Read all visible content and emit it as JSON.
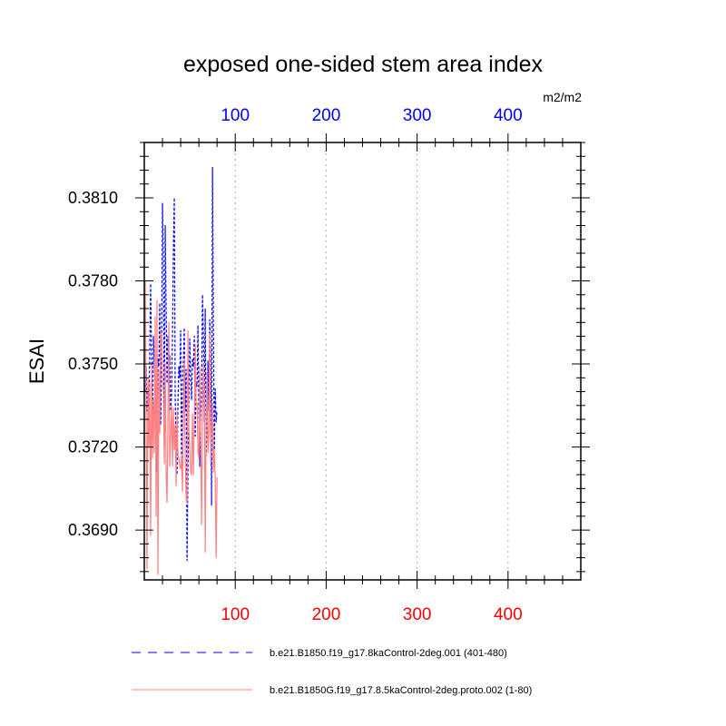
{
  "chart_data": {
    "type": "line",
    "title": "exposed one-sided stem area index",
    "units": "m2/m2",
    "ylabel": "ESAI",
    "xlabel": "",
    "xlim": [
      0,
      480
    ],
    "ylim": [
      0.3672,
      0.383
    ],
    "yticks": [
      0.369,
      0.372,
      0.375,
      0.378,
      0.381
    ],
    "ytick_labels": [
      "0.3690",
      "0.3720",
      "0.3750",
      "0.3780",
      "0.3810"
    ],
    "xticks": [
      100,
      200,
      300,
      400
    ],
    "xtick_labels_top": [
      "100",
      "200",
      "300",
      "400"
    ],
    "xtick_labels_bottom": [
      "100",
      "200",
      "300",
      "400"
    ],
    "x_grid": true,
    "series": [
      {
        "name": "b.e21.B1850.f19_g17.8kaControl-2deg.001 (401-480)",
        "color": "#0000ff",
        "style": "dashed",
        "axis": "top",
        "x": [
          1,
          2,
          3,
          4,
          5,
          6,
          7,
          8,
          9,
          10,
          11,
          12,
          13,
          14,
          15,
          16,
          17,
          18,
          19,
          20,
          21,
          22,
          23,
          24,
          25,
          26,
          27,
          28,
          29,
          30,
          31,
          32,
          33,
          34,
          35,
          36,
          37,
          38,
          39,
          40,
          41,
          42,
          43,
          44,
          45,
          46,
          47,
          48,
          49,
          50,
          51,
          52,
          53,
          54,
          55,
          56,
          57,
          58,
          59,
          60,
          61,
          62,
          63,
          64,
          65,
          66,
          67,
          68,
          69,
          70,
          71,
          72,
          73,
          74,
          75,
          76,
          77,
          78,
          79,
          80
        ],
        "values": [
          0.374,
          0.3749,
          0.3733,
          0.3742,
          0.3731,
          0.3756,
          0.3779,
          0.375,
          0.3725,
          0.376,
          0.3752,
          0.374,
          0.373,
          0.3711,
          0.3752,
          0.3749,
          0.3772,
          0.3728,
          0.3755,
          0.3808,
          0.379,
          0.372,
          0.38,
          0.3771,
          0.3743,
          0.376,
          0.3748,
          0.3753,
          0.3733,
          0.3739,
          0.376,
          0.3791,
          0.381,
          0.3737,
          0.3722,
          0.371,
          0.3736,
          0.3749,
          0.3745,
          0.3762,
          0.3713,
          0.3743,
          0.3752,
          0.3763,
          0.3733,
          0.3748,
          0.3679,
          0.3711,
          0.3733,
          0.3759,
          0.3746,
          0.3737,
          0.3752,
          0.3749,
          0.376,
          0.3724,
          0.3743,
          0.3742,
          0.3764,
          0.3732,
          0.3713,
          0.373,
          0.374,
          0.3775,
          0.376,
          0.3729,
          0.377,
          0.3717,
          0.3728,
          0.3751,
          0.3733,
          0.3766,
          0.3752,
          0.3699,
          0.3821,
          0.3765,
          0.3719,
          0.3741,
          0.3729,
          0.3733
        ]
      },
      {
        "name": "b.e21.B1850G.f19_g17.8.5kaControl-2deg.proto.002 (1-80)",
        "color": "#ff8080",
        "style": "solid",
        "axis": "bottom",
        "x": [
          1,
          2,
          3,
          4,
          5,
          6,
          7,
          8,
          9,
          10,
          11,
          12,
          13,
          14,
          15,
          16,
          17,
          18,
          19,
          20,
          21,
          22,
          23,
          24,
          25,
          26,
          27,
          28,
          29,
          30,
          31,
          32,
          33,
          34,
          35,
          36,
          37,
          38,
          39,
          40,
          41,
          42,
          43,
          44,
          45,
          46,
          47,
          48,
          49,
          50,
          51,
          52,
          53,
          54,
          55,
          56,
          57,
          58,
          59,
          60,
          61,
          62,
          63,
          64,
          65,
          66,
          67,
          68,
          69,
          70,
          71,
          72,
          73,
          74,
          75,
          76,
          77,
          78,
          79,
          80
        ],
        "values": [
          0.378,
          0.3736,
          0.3676,
          0.3745,
          0.372,
          0.3743,
          0.3688,
          0.375,
          0.3716,
          0.3737,
          0.3718,
          0.3767,
          0.3695,
          0.3773,
          0.3674,
          0.3748,
          0.3725,
          0.3762,
          0.376,
          0.3745,
          0.374,
          0.3714,
          0.375,
          0.371,
          0.37,
          0.373,
          0.3765,
          0.3713,
          0.3724,
          0.3735,
          0.3713,
          0.3734,
          0.3719,
          0.3728,
          0.3706,
          0.3733,
          0.3717,
          0.3716,
          0.3713,
          0.3712,
          0.3717,
          0.3704,
          0.373,
          0.3752,
          0.3716,
          0.3701,
          0.37,
          0.3762,
          0.3726,
          0.372,
          0.3711,
          0.371,
          0.3732,
          0.371,
          0.373,
          0.3757,
          0.3735,
          0.3736,
          0.3718,
          0.3716,
          0.3749,
          0.3724,
          0.3692,
          0.3732,
          0.375,
          0.3741,
          0.3682,
          0.373,
          0.3747,
          0.3718,
          0.3725,
          0.3761,
          0.3714,
          0.3725,
          0.3736,
          0.3711,
          0.3719,
          0.3708,
          0.368,
          0.3709
        ]
      }
    ]
  }
}
